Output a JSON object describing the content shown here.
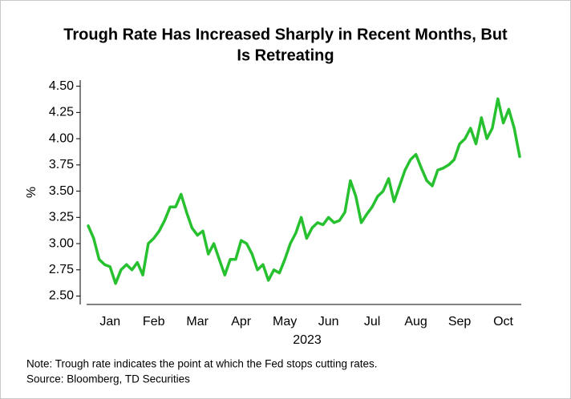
{
  "chart_data": {
    "type": "line",
    "title": "Trough Rate Has Increased Sharply in Recent Months, But",
    "subtitle": "Is Retreating",
    "y_label": "%",
    "x_label": "2023",
    "notes": [
      "Note: Trough rate indicates the point at which the Fed stops cutting rates.",
      "Source: Bloomberg, TD Securities"
    ],
    "categories": [
      null,
      null,
      null,
      null,
      "Jan",
      null,
      null,
      null,
      null,
      null,
      null,
      null,
      "Feb",
      null,
      null,
      null,
      null,
      null,
      null,
      null,
      "Mar",
      null,
      null,
      null,
      null,
      null,
      null,
      null,
      "Apr",
      null,
      null,
      null,
      null,
      null,
      null,
      null,
      "May",
      null,
      null,
      null,
      null,
      null,
      null,
      null,
      "Jun",
      null,
      null,
      null,
      null,
      null,
      null,
      null,
      "Jul",
      null,
      null,
      null,
      null,
      null,
      null,
      null,
      "Aug",
      null,
      null,
      null,
      null,
      null,
      null,
      null,
      "Sep",
      null,
      null,
      null,
      null,
      null,
      null,
      null,
      "Oct",
      null,
      null,
      null
    ],
    "series": [
      {
        "name": "Trough rate",
        "color": "#27c130",
        "values": [
          3.17,
          3.05,
          2.85,
          2.8,
          2.78,
          2.62,
          2.75,
          2.8,
          2.75,
          2.82,
          2.7,
          3.0,
          3.05,
          3.12,
          3.22,
          3.35,
          3.35,
          3.47,
          3.3,
          3.15,
          3.08,
          3.12,
          2.9,
          3.0,
          2.85,
          2.7,
          2.85,
          2.85,
          3.03,
          3.0,
          2.9,
          2.75,
          2.8,
          2.65,
          2.75,
          2.72,
          2.85,
          3.0,
          3.1,
          3.25,
          3.05,
          3.15,
          3.2,
          3.18,
          3.25,
          3.2,
          3.22,
          3.3,
          3.6,
          3.45,
          3.2,
          3.28,
          3.35,
          3.45,
          3.5,
          3.62,
          3.4,
          3.55,
          3.7,
          3.8,
          3.85,
          3.72,
          3.6,
          3.55,
          3.7,
          3.72,
          3.75,
          3.8,
          3.95,
          4.0,
          4.1,
          3.95,
          4.2,
          4.0,
          4.1,
          4.38,
          4.15,
          4.28,
          4.1,
          3.83
        ]
      }
    ],
    "ylim": [
      2.42,
      4.52
    ],
    "yticks": [
      {
        "value": 2.5,
        "label": "2.50"
      },
      {
        "value": 2.75,
        "label": "2.75"
      },
      {
        "value": 3,
        "label": "3.00"
      },
      {
        "value": 3.25,
        "label": "3.25"
      },
      {
        "value": 3.5,
        "label": "3.50"
      },
      {
        "value": 3.75,
        "label": "3.75"
      },
      {
        "value": 4,
        "label": "4.00"
      },
      {
        "value": 4.25,
        "label": "4.25"
      },
      {
        "value": 4.5,
        "label": "4.50"
      }
    ],
    "grid": false
  }
}
